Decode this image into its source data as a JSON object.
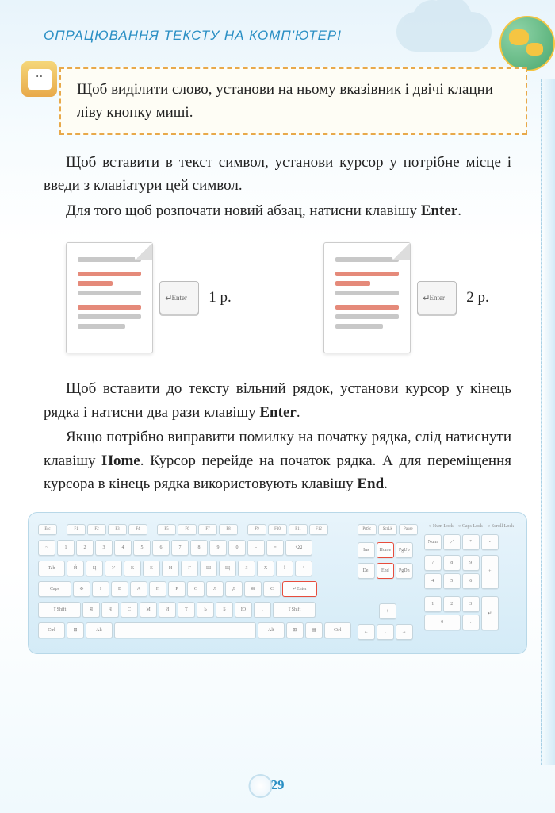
{
  "header": {
    "title": "ОПРАЦЮВАННЯ ТЕКСТУ НА КОМП'ЮТЕРІ"
  },
  "tip": {
    "text": "Щоб виділити слово, установи на ньому вказівник і двічі клацни ліву кнопку миші."
  },
  "para1": {
    "l1": "Щоб вставити в текст символ, установи курсор у потрібне місце і введи з клавіатури цей символ.",
    "l2a": "Для того щоб розпочати новий абзац, натисни клавішу ",
    "l2b": "Enter",
    "l2c": "."
  },
  "diagram": {
    "enter_label": "Enter",
    "count1": "1 р.",
    "count2": "2 р."
  },
  "para2": {
    "l1a": "Щоб вставити до тексту вільний рядок, установи курсор у кінець рядка і натисни два рази клавішу ",
    "l1b": "Enter",
    "l1c": ".",
    "l2a": "Якщо потрібно виправити помилку на початку рядка, слід натиснути клавішу ",
    "l2b": "Home",
    "l2c": ". Курсор перейде на початок рядка. А для переміщення курсора в кінець рядка використовують клавішу ",
    "l2d": "End",
    "l2e": "."
  },
  "keyboard": {
    "indicators": {
      "num": "Num Lock",
      "caps": "Caps Lock",
      "scroll": "Scroll Lock"
    },
    "fn_row": [
      "Esc",
      "F1",
      "F2",
      "F3",
      "F4",
      "F5",
      "F6",
      "F7",
      "F8",
      "F9",
      "F10",
      "F11",
      "F12"
    ],
    "fn_right": [
      "PrtSc",
      "ScrLk",
      "Pause"
    ],
    "r1": [
      "~",
      "1",
      "2",
      "3",
      "4",
      "5",
      "6",
      "7",
      "8",
      "9",
      "0",
      "-",
      "="
    ],
    "r1_back": "⌫",
    "r2_tab": "Tab",
    "r2": [
      "Й",
      "Ц",
      "У",
      "К",
      "Е",
      "Н",
      "Г",
      "Ш",
      "Щ",
      "З",
      "Х",
      "Ї",
      "\\"
    ],
    "r3_caps": "Caps",
    "r3": [
      "Ф",
      "І",
      "В",
      "А",
      "П",
      "Р",
      "О",
      "Л",
      "Д",
      "Ж",
      "Є"
    ],
    "r3_enter": "↵Enter",
    "r4_shift": "⇧Shift",
    "r4": [
      "Я",
      "Ч",
      "С",
      "М",
      "И",
      "Т",
      "Ь",
      "Б",
      "Ю",
      "."
    ],
    "r4_shift2": "⇧Shift",
    "r5": {
      "ctrl": "Ctrl",
      "win": "⊞",
      "alt": "Alt",
      "altgr": "Alt",
      "win2": "⊞",
      "menu": "▤",
      "ctrl2": "Ctrl"
    },
    "nav1": [
      "Ins",
      "Home",
      "PgUp"
    ],
    "nav2": [
      "Del",
      "End",
      "PgDn"
    ],
    "arrows": {
      "up": "↑",
      "left": "←",
      "down": "↓",
      "right": "→"
    },
    "num_top": [
      "Num",
      "／",
      "*",
      "-"
    ],
    "num_r1": [
      "7",
      "8",
      "9"
    ],
    "num_plus": "+",
    "num_r2": [
      "4",
      "5",
      "6"
    ],
    "num_r3": [
      "1",
      "2",
      "3"
    ],
    "num_enter": "↵",
    "num_r4": [
      "0",
      "."
    ]
  },
  "page_number": "29"
}
